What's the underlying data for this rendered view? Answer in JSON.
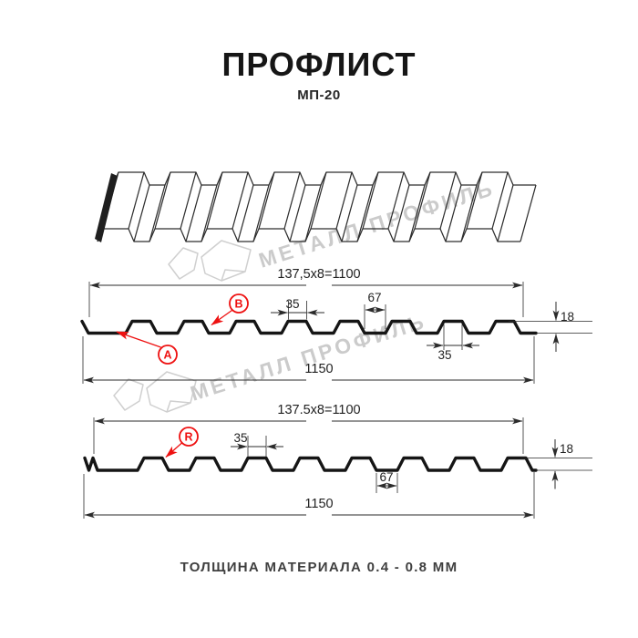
{
  "page": {
    "title": "ПРОФЛИСТ",
    "subtitle": "МП-20",
    "footer": "ТОЛЩИНА МАТЕРИАЛА 0.4 - 0.8 ММ"
  },
  "watermark": {
    "text": "МЕТАЛЛ ПРОФИЛЬ"
  },
  "colors": {
    "ink": "#1c1c1c",
    "accent_red": "#ee1111",
    "watermark_gray": "#c9c9c9"
  },
  "drawing_front": {
    "label_a": "A",
    "label_b": "B",
    "dim_useful_width": "137,5x8=1100",
    "dim_total_width": "1150",
    "dim_rib_top_width": "35",
    "dim_valley_width": "67",
    "dim_height": "18",
    "dim_rib_bottom_width": "35"
  },
  "drawing_reverse": {
    "label_r": "R",
    "dim_useful_width": "137.5x8=1100",
    "dim_total_width": "1150",
    "dim_rib_top_width": "35",
    "dim_valley_width": "67",
    "dim_height": "18"
  }
}
